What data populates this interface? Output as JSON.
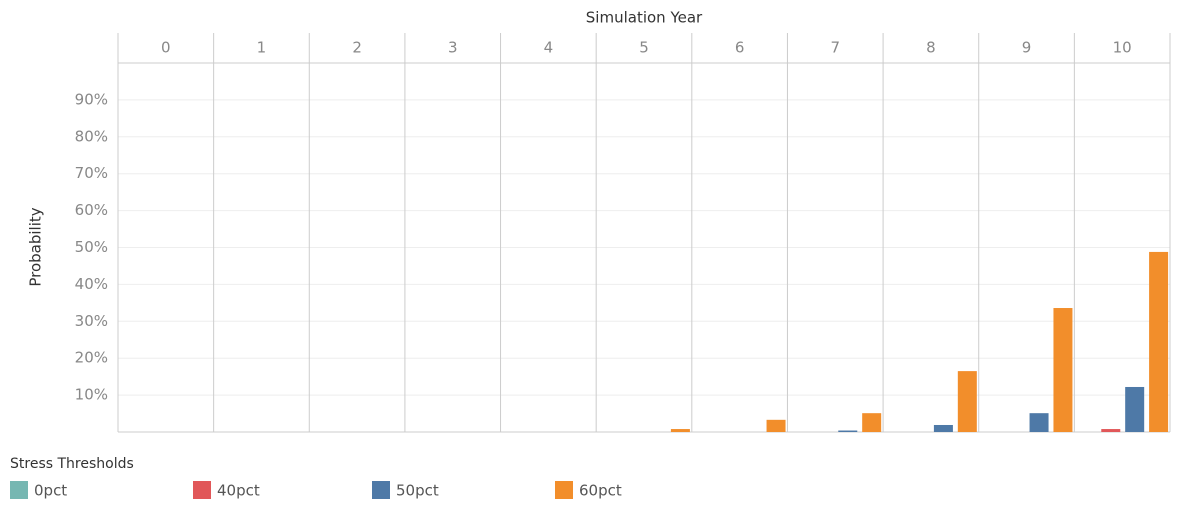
{
  "chart_data": {
    "type": "bar",
    "x_axis_title": "Simulation Year",
    "y_axis_title": "Probability",
    "categories": [
      "0",
      "1",
      "2",
      "3",
      "4",
      "5",
      "6",
      "7",
      "8",
      "9",
      "10"
    ],
    "series": [
      {
        "name": "0pct",
        "color": "#76b7b2",
        "values": [
          0,
          0,
          0,
          0,
          0,
          0,
          0,
          0,
          0,
          0,
          0
        ]
      },
      {
        "name": "40pct",
        "color": "#e15759",
        "values": [
          0,
          0,
          0,
          0,
          0,
          0,
          0,
          0,
          0,
          0,
          0.8
        ]
      },
      {
        "name": "50pct",
        "color": "#4e79a7",
        "values": [
          0,
          0,
          0,
          0,
          0,
          0,
          0,
          0.4,
          1.9,
          5.1,
          12.2
        ]
      },
      {
        "name": "60pct",
        "color": "#f28e2b",
        "values": [
          0,
          0,
          0,
          0,
          0,
          0.8,
          3.3,
          5.1,
          16.5,
          33.6,
          48.8
        ]
      }
    ],
    "ylim": [
      0,
      100
    ],
    "yticks": [
      {
        "value": 10,
        "label": "10%"
      },
      {
        "value": 20,
        "label": "20%"
      },
      {
        "value": 30,
        "label": "30%"
      },
      {
        "value": 40,
        "label": "40%"
      },
      {
        "value": 50,
        "label": "50%"
      },
      {
        "value": 60,
        "label": "60%"
      },
      {
        "value": 70,
        "label": "70%"
      },
      {
        "value": 80,
        "label": "80%"
      },
      {
        "value": 90,
        "label": "90%"
      }
    ],
    "grid": true,
    "legend_title": "Stress Thresholds",
    "legend_position": "bottom"
  }
}
